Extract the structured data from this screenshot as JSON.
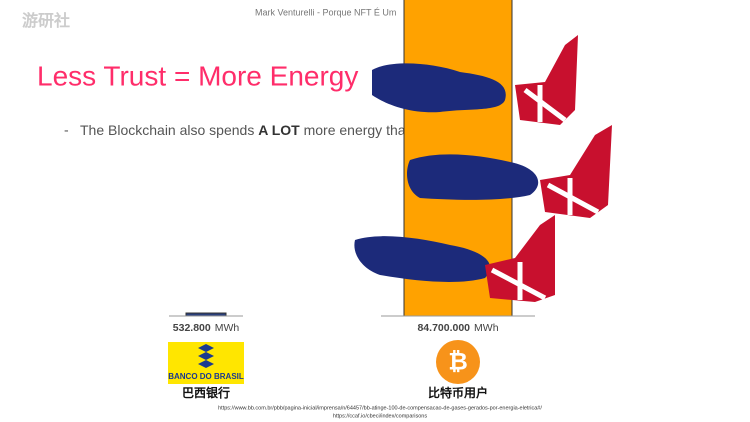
{
  "header": {
    "presenter": "Mark Venturelli - Porque NFT É Um",
    "watermark": "游研社"
  },
  "slide": {
    "title": "Less Trust = More Energy",
    "bullet": {
      "marker": "-",
      "before": "The Blockchain also spends ",
      "bold": "A LOT",
      "after": " more energy than using trust"
    }
  },
  "chart_data": {
    "type": "bar",
    "unit": "MWh",
    "categories": [
      "巴西银行",
      "比特币用户"
    ],
    "values": [
      532800,
      84700000
    ],
    "value_labels": [
      "532.800",
      "84.700.000"
    ],
    "colors": [
      "#2a3f7a",
      "#ffa200"
    ],
    "logo_texts": [
      "BANCO DO BRASIL",
      "₿"
    ]
  },
  "footnotes": [
    "https://www.bb.com.br/pbb/pagina-inicial/imprensa/n/64457/bb-atinge-100-de-compensacao-de-gases-gerados-por-energia-eletrica#/",
    "https://ccaf.io/cbeci/index/comparisons"
  ]
}
